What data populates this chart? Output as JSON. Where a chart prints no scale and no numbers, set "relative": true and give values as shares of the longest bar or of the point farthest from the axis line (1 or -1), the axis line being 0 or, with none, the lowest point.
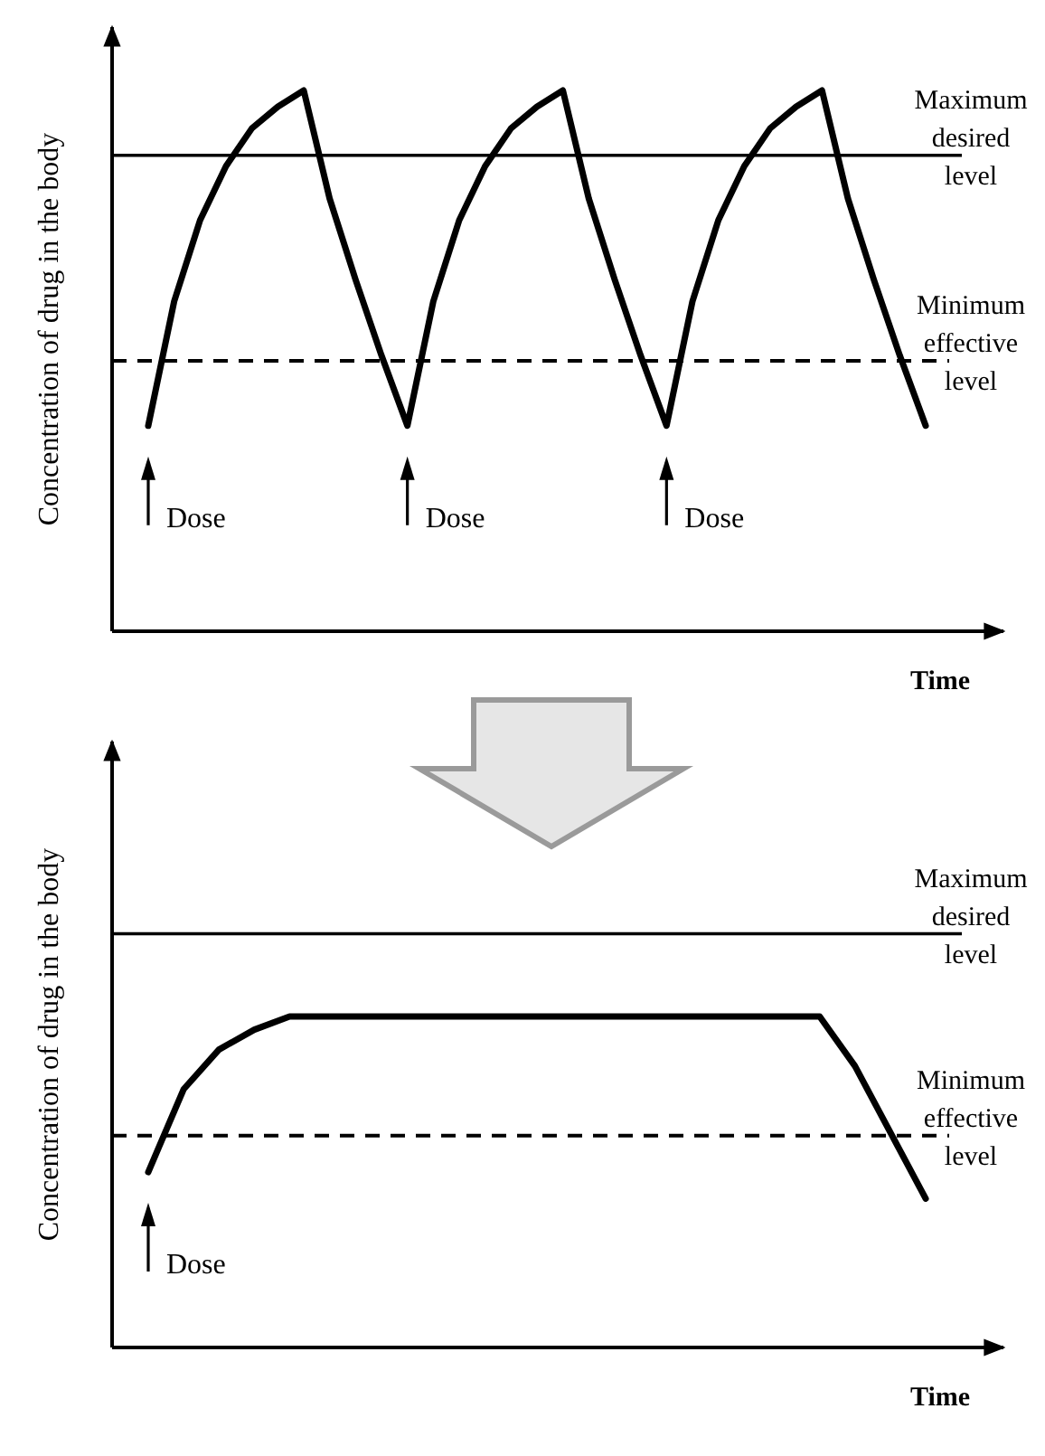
{
  "chart_data": [
    {
      "type": "line",
      "relative": true,
      "ylabel": "Concentration of drug in the body",
      "xlabel": "Time",
      "line_style": "solid",
      "categories": [
        null,
        null,
        null,
        null,
        null,
        null,
        null,
        null,
        null,
        null,
        null,
        null,
        null,
        null,
        null,
        null,
        null,
        null,
        null,
        null,
        null,
        null,
        null,
        null,
        null,
        null,
        null,
        null,
        null,
        null,
        null
      ],
      "series": [
        {
          "color": "#000000",
          "values": [
            0.38,
            0.61,
            0.76,
            0.86,
            0.93,
            0.97,
            1,
            0.8,
            0.65,
            0.51,
            0.38,
            0.61,
            0.76,
            0.86,
            0.93,
            0.97,
            1,
            0.8,
            0.65,
            0.51,
            0.38,
            0.61,
            0.76,
            0.86,
            0.93,
            0.97,
            1,
            0.8,
            0.65,
            0.51,
            0.38
          ]
        }
      ],
      "ref_lines": [
        {
          "axis": "y",
          "value": 0.88,
          "label": "Maximum desired level",
          "line_style": "solid"
        },
        {
          "axis": "y",
          "value": 0.5,
          "label": "Minimum effective level",
          "line_style": "dashed"
        }
      ],
      "annotations": [
        "Dose",
        "Dose",
        "Dose"
      ]
    },
    {
      "type": "line",
      "relative": true,
      "ylabel": "Concentration of drug in the body",
      "xlabel": "Time",
      "line_style": "solid",
      "categories": [
        null,
        null,
        null,
        null,
        null,
        null,
        null,
        null,
        null,
        null,
        null,
        null,
        null,
        null,
        null,
        null,
        null,
        null,
        null,
        null,
        null,
        null,
        null
      ],
      "series": [
        {
          "color": "#000000",
          "values": [
            0.53,
            0.78,
            0.9,
            0.96,
            1,
            1,
            1,
            1,
            1,
            1,
            1,
            1,
            1,
            1,
            1,
            1,
            1,
            1,
            1,
            1,
            0.85,
            0.65,
            0.45
          ]
        }
      ],
      "ref_lines": [
        {
          "axis": "y",
          "value": 1.25,
          "label": "Maximum desired level",
          "line_style": "solid"
        },
        {
          "axis": "y",
          "value": 0.64,
          "label": "Minimum effective level",
          "line_style": "dashed"
        }
      ],
      "annotations": [
        "Dose"
      ]
    }
  ]
}
